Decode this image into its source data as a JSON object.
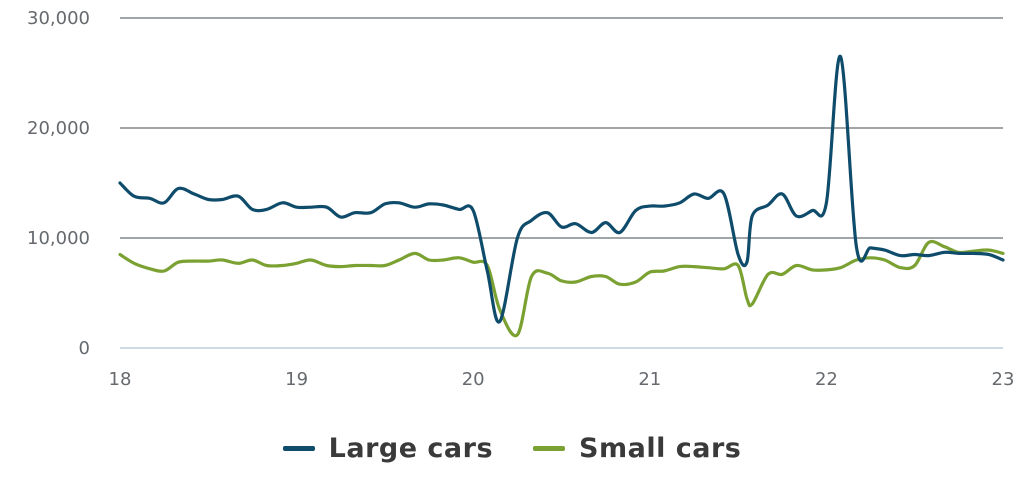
{
  "chart_data": {
    "type": "line",
    "title": "",
    "xlabel": "",
    "ylabel": "",
    "xlim": [
      18,
      23
    ],
    "ylim": [
      0,
      30000
    ],
    "x_ticks": [
      "18",
      "19",
      "20",
      "21",
      "22",
      "23"
    ],
    "y_ticks": [
      "0",
      "10,000",
      "20,000",
      "30,000"
    ],
    "grid": "horizontal",
    "legend_position": "bottom",
    "series": [
      {
        "name": "Large cars",
        "color": "#0f4c6b",
        "x": [
          18.0,
          18.08,
          18.17,
          18.25,
          18.33,
          18.42,
          18.5,
          18.58,
          18.67,
          18.75,
          18.83,
          18.92,
          19.0,
          19.08,
          19.17,
          19.25,
          19.33,
          19.42,
          19.5,
          19.58,
          19.67,
          19.75,
          19.83,
          19.92,
          20.0,
          20.08,
          20.15,
          20.25,
          20.33,
          20.42,
          20.5,
          20.58,
          20.67,
          20.75,
          20.83,
          20.92,
          21.0,
          21.08,
          21.17,
          21.25,
          21.33,
          21.42,
          21.5,
          21.55,
          21.58,
          21.67,
          21.75,
          21.83,
          21.92,
          22.0,
          22.08,
          22.17,
          22.25,
          22.33,
          22.42,
          22.5,
          22.58,
          22.67,
          22.75,
          22.83,
          22.92,
          23.0
        ],
        "y": [
          15000,
          13800,
          13600,
          13200,
          14500,
          14000,
          13500,
          13500,
          13800,
          12600,
          12600,
          13200,
          12800,
          12800,
          12800,
          11900,
          12300,
          12300,
          13100,
          13200,
          12800,
          13100,
          13000,
          12600,
          12500,
          7000,
          2400,
          10000,
          11600,
          12300,
          11000,
          11300,
          10500,
          11400,
          10500,
          12500,
          12900,
          12900,
          13200,
          14000,
          13600,
          14000,
          8500,
          7800,
          12000,
          13000,
          14000,
          12000,
          12500,
          13200,
          26500,
          9200,
          9100,
          8900,
          8400,
          8500,
          8400,
          8700,
          8600,
          8600,
          8500,
          8000
        ]
      },
      {
        "name": "Small cars",
        "color": "#7aa131",
        "x": [
          18.0,
          18.08,
          18.17,
          18.25,
          18.33,
          18.42,
          18.5,
          18.58,
          18.67,
          18.75,
          18.83,
          18.92,
          19.0,
          19.08,
          19.17,
          19.25,
          19.33,
          19.42,
          19.5,
          19.58,
          19.67,
          19.75,
          19.83,
          19.92,
          20.0,
          20.08,
          20.15,
          20.25,
          20.33,
          20.42,
          20.5,
          20.58,
          20.67,
          20.75,
          20.83,
          20.92,
          21.0,
          21.08,
          21.17,
          21.25,
          21.33,
          21.42,
          21.5,
          21.55,
          21.58,
          21.67,
          21.75,
          21.83,
          21.92,
          22.0,
          22.08,
          22.17,
          22.25,
          22.33,
          22.42,
          22.5,
          22.58,
          22.67,
          22.75,
          22.83,
          22.92,
          23.0
        ],
        "y": [
          8500,
          7700,
          7200,
          7000,
          7800,
          7900,
          7900,
          8000,
          7700,
          8000,
          7500,
          7500,
          7700,
          8000,
          7500,
          7400,
          7500,
          7500,
          7500,
          8000,
          8600,
          8000,
          8000,
          8200,
          7800,
          7500,
          3500,
          1200,
          6500,
          6800,
          6100,
          6000,
          6500,
          6500,
          5800,
          6000,
          6900,
          7000,
          7400,
          7400,
          7300,
          7200,
          7500,
          4500,
          4000,
          6700,
          6700,
          7500,
          7100,
          7100,
          7300,
          8000,
          8200,
          8000,
          7300,
          7500,
          9600,
          9200,
          8700,
          8800,
          8900,
          8600
        ]
      }
    ]
  }
}
